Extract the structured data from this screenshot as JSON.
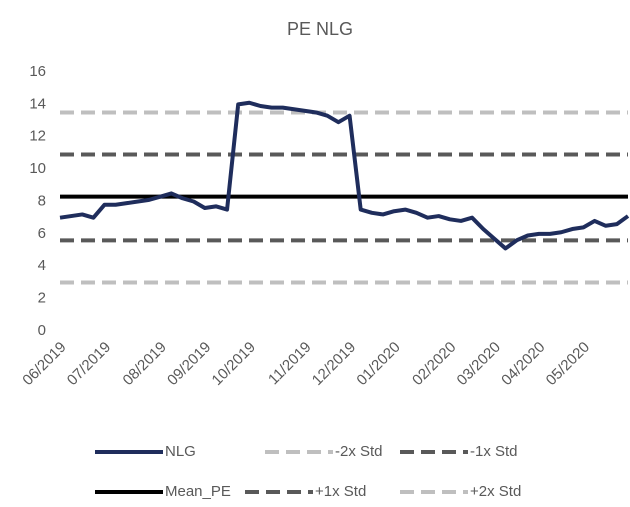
{
  "chart_data": {
    "type": "line",
    "title": "PE NLG",
    "categories": [
      "06/2019",
      null,
      null,
      null,
      "07/2019",
      null,
      null,
      null,
      null,
      "08/2019",
      null,
      null,
      null,
      "09/2019",
      null,
      null,
      null,
      "10/2019",
      null,
      null,
      null,
      null,
      "11/2019",
      null,
      null,
      null,
      "12/2019",
      null,
      null,
      null,
      "01/2020",
      null,
      null,
      null,
      null,
      "02/2020",
      null,
      null,
      null,
      "03/2020",
      null,
      null,
      null,
      "04/2020",
      null,
      null,
      null,
      "05/2020",
      null,
      null,
      null,
      null
    ],
    "series": [
      {
        "name": "NLG",
        "color": "#1f2d5c",
        "style": "solid",
        "values": [
          7.0,
          7.1,
          7.2,
          7.0,
          7.8,
          7.8,
          7.9,
          8.0,
          8.1,
          8.3,
          8.5,
          8.2,
          8.0,
          7.6,
          7.7,
          7.5,
          14.0,
          14.1,
          13.9,
          13.8,
          13.8,
          13.7,
          13.6,
          13.5,
          13.3,
          12.9,
          13.3,
          7.5,
          7.3,
          7.2,
          7.4,
          7.5,
          7.3,
          7.0,
          7.1,
          6.9,
          6.8,
          7.0,
          6.3,
          5.7,
          5.1,
          5.6,
          5.9,
          6.0,
          6.0,
          6.1,
          6.3,
          6.4,
          6.8,
          6.5,
          6.6,
          7.1
        ]
      },
      {
        "name": "-2x Std",
        "color": "#bfbfbf",
        "style": "dashed",
        "value": 3.0
      },
      {
        "name": "-1x Std",
        "color": "#595959",
        "style": "dashed",
        "value": 5.6
      },
      {
        "name": "Mean_PE",
        "color": "#000000",
        "style": "solid",
        "value": 8.3
      },
      {
        "name": "+1x Std",
        "color": "#595959",
        "style": "dashed",
        "value": 10.9
      },
      {
        "name": "+2x Std",
        "color": "#bfbfbf",
        "style": "dashed",
        "value": 13.5
      }
    ],
    "ylim": [
      0,
      16
    ],
    "yticks": [
      0,
      2,
      4,
      6,
      8,
      10,
      12,
      14,
      16
    ],
    "grid": false,
    "legend": "bottom"
  }
}
